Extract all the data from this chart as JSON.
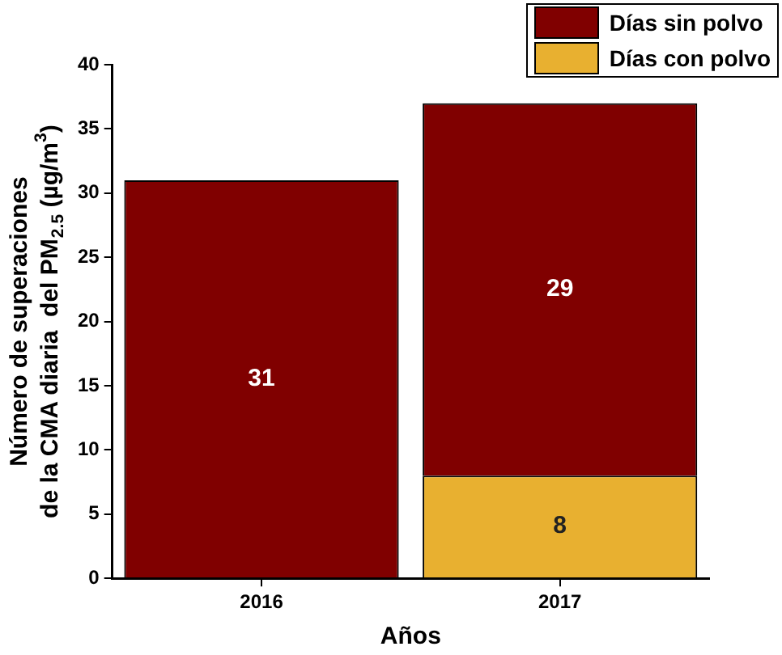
{
  "chart_data": {
    "type": "bar",
    "xlabel": "Años",
    "ylabel": "Número de superaciones\nde la CMA diaria  del PM$_{2.5}$ (µg/m$^{3}$)",
    "categories": [
      "2016",
      "2017"
    ],
    "stacked": true,
    "data_labels": true,
    "grid": false,
    "legend": "top right",
    "ylim": [
      0,
      40
    ],
    "yticks": [
      0,
      5,
      10,
      15,
      20,
      25,
      30,
      35,
      40
    ],
    "series": [
      {
        "name": "Días con polvo",
        "color": "#e8b030",
        "values": [
          null,
          8
        ]
      },
      {
        "name": "Días sin polvo",
        "color": "#800000",
        "values": [
          31,
          29
        ]
      }
    ]
  }
}
